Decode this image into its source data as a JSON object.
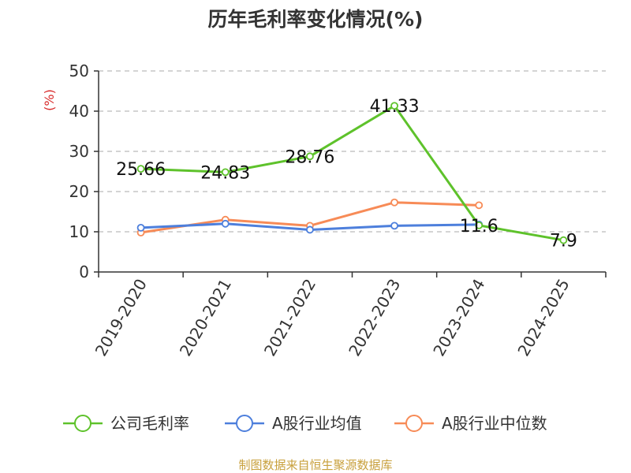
{
  "chart_data": {
    "type": "line",
    "title": "历年毛利率变化情况(%)",
    "ylabel": "(%)",
    "xlabel": "",
    "ylim": [
      0,
      50
    ],
    "yticks": [
      0,
      10,
      20,
      30,
      40,
      50
    ],
    "categories": [
      "2019-2020",
      "2020-2021",
      "2021-2022",
      "2022-2023",
      "2023-2024",
      "2024-2025"
    ],
    "grid": true,
    "legend_position": "bottom",
    "series": [
      {
        "name": "公司毛利率",
        "color": "#5ec22b",
        "values": [
          25.66,
          24.83,
          28.76,
          41.33,
          11.6,
          7.9
        ],
        "labels": [
          "25.66",
          "24.83",
          "28.76",
          "41.33",
          "11.6",
          "7.9"
        ]
      },
      {
        "name": "A股行业均值",
        "color": "#4d7fdc",
        "values": [
          11.0,
          12.0,
          10.5,
          11.5,
          11.8,
          null
        ]
      },
      {
        "name": "A股行业中位数",
        "color": "#f78b57",
        "values": [
          9.8,
          13.0,
          11.5,
          17.3,
          16.6,
          null
        ]
      }
    ],
    "source": "制图数据来自恒生聚源数据库",
    "source_color": "#c8a03c",
    "ylabel_color": "#d82a2a"
  }
}
